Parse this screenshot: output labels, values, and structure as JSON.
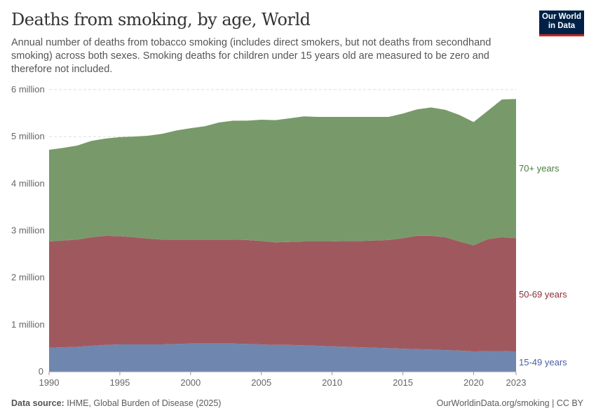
{
  "header": {
    "title": "Deaths from smoking, by age, World",
    "subtitle": "Annual number of deaths from tobacco smoking (includes direct smokers, but not deaths from secondhand smoking) across both sexes. Smoking deaths for children under 15 years old are measured to be zero and therefore not included.",
    "logo_line1": "Our World",
    "logo_line2": "in Data"
  },
  "footer": {
    "source_label": "Data source:",
    "source": "IHME, Global Burden of Disease (2025)",
    "credit": "OurWorldinData.org/smoking | CC BY"
  },
  "chart_data": {
    "type": "area",
    "stacked": true,
    "x": [
      1990,
      1991,
      1992,
      1993,
      1994,
      1995,
      1996,
      1997,
      1998,
      1999,
      2000,
      2001,
      2002,
      2003,
      2004,
      2005,
      2006,
      2007,
      2008,
      2009,
      2010,
      2011,
      2012,
      2013,
      2014,
      2015,
      2016,
      2017,
      2018,
      2019,
      2020,
      2021,
      2022,
      2023
    ],
    "xticks": [
      1990,
      1995,
      2000,
      2005,
      2010,
      2015,
      2020,
      2023
    ],
    "ylim": [
      0,
      6000000
    ],
    "yticks": [
      {
        "v": 0,
        "label": "0"
      },
      {
        "v": 1000000,
        "label": "1 million"
      },
      {
        "v": 2000000,
        "label": "2 million"
      },
      {
        "v": 3000000,
        "label": "3 million"
      },
      {
        "v": 4000000,
        "label": "4 million"
      },
      {
        "v": 5000000,
        "label": "5 million"
      },
      {
        "v": 6000000,
        "label": "6 million"
      }
    ],
    "grid": true,
    "legend": "right (inline labels)",
    "series": [
      {
        "name": "15-49 years",
        "color": "#6f87ae",
        "label_color": "#4a5fa6",
        "values": [
          510000,
          520000,
          530000,
          550000,
          570000,
          580000,
          580000,
          580000,
          580000,
          590000,
          600000,
          600000,
          600000,
          600000,
          590000,
          580000,
          570000,
          570000,
          560000,
          550000,
          540000,
          530000,
          520000,
          510000,
          500000,
          490000,
          480000,
          470000,
          460000,
          450000,
          430000,
          440000,
          440000,
          430000
        ]
      },
      {
        "name": "50-69 years",
        "color": "#a0585f",
        "label_color": "#8b2e3a",
        "values": [
          2260000,
          2270000,
          2280000,
          2310000,
          2320000,
          2300000,
          2280000,
          2250000,
          2230000,
          2220000,
          2210000,
          2210000,
          2210000,
          2210000,
          2210000,
          2200000,
          2180000,
          2190000,
          2210000,
          2220000,
          2230000,
          2250000,
          2260000,
          2280000,
          2300000,
          2350000,
          2410000,
          2420000,
          2400000,
          2320000,
          2260000,
          2380000,
          2420000,
          2410000
        ]
      },
      {
        "name": "70+ years",
        "color": "#789a6a",
        "label_color": "#4c7a3d",
        "values": [
          1950000,
          1970000,
          2000000,
          2050000,
          2070000,
          2110000,
          2140000,
          2190000,
          2250000,
          2320000,
          2370000,
          2410000,
          2490000,
          2530000,
          2540000,
          2580000,
          2600000,
          2630000,
          2660000,
          2650000,
          2650000,
          2640000,
          2640000,
          2630000,
          2620000,
          2650000,
          2690000,
          2730000,
          2710000,
          2690000,
          2620000,
          2730000,
          2930000,
          2960000
        ]
      }
    ]
  }
}
